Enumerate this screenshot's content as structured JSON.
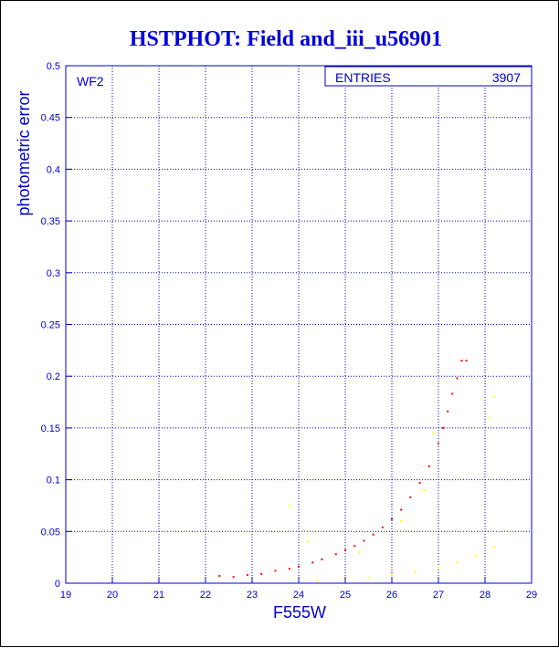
{
  "chart_data": {
    "type": "scatter",
    "title": "HSTPHOT: Field and_iii_u56901",
    "xlabel": "F555W",
    "ylabel": "photometric error",
    "panel_label": "WF2",
    "stats": {
      "label": "ENTRIES",
      "value": "3907"
    },
    "xlim": [
      19,
      29
    ],
    "ylim": [
      0,
      0.5
    ],
    "xticks": [
      "19",
      "20",
      "21",
      "22",
      "23",
      "24",
      "25",
      "26",
      "27",
      "28",
      "29"
    ],
    "yticks": [
      "0",
      "0.05",
      "0.1",
      "0.15",
      "0.2",
      "0.25",
      "0.3",
      "0.35",
      "0.4",
      "0.45",
      "0.5"
    ],
    "grid": true,
    "series": [
      {
        "color": "#ff0000",
        "values": [
          [
            22.3,
            0.007
          ],
          [
            22.6,
            0.006
          ],
          [
            22.9,
            0.008
          ],
          [
            23.2,
            0.009
          ],
          [
            23.5,
            0.012
          ],
          [
            23.8,
            0.014
          ],
          [
            24.0,
            0.016
          ],
          [
            24.3,
            0.02
          ],
          [
            24.5,
            0.023
          ],
          [
            24.8,
            0.028
          ],
          [
            25.0,
            0.032
          ],
          [
            25.2,
            0.036
          ],
          [
            25.4,
            0.041
          ],
          [
            25.6,
            0.047
          ],
          [
            25.8,
            0.054
          ],
          [
            26.0,
            0.062
          ],
          [
            26.2,
            0.071
          ],
          [
            26.4,
            0.083
          ],
          [
            26.6,
            0.097
          ],
          [
            26.8,
            0.113
          ],
          [
            27.0,
            0.135
          ],
          [
            27.1,
            0.15
          ],
          [
            27.2,
            0.166
          ],
          [
            27.3,
            0.183
          ],
          [
            27.4,
            0.198
          ],
          [
            27.5,
            0.215
          ],
          [
            27.6,
            0.215
          ]
        ]
      },
      {
        "color": "#ffff00",
        "values": [
          [
            24.4,
            0.002
          ],
          [
            25.0,
            0.004
          ],
          [
            25.5,
            0.005
          ],
          [
            26.0,
            0.008
          ],
          [
            26.5,
            0.011
          ],
          [
            27.0,
            0.015
          ],
          [
            27.4,
            0.02
          ],
          [
            27.8,
            0.027
          ],
          [
            28.2,
            0.035
          ],
          [
            24.2,
            0.04
          ],
          [
            25.3,
            0.03
          ],
          [
            26.2,
            0.06
          ],
          [
            26.7,
            0.09
          ],
          [
            26.9,
            0.145
          ],
          [
            28.1,
            0.16
          ],
          [
            28.2,
            0.18
          ],
          [
            23.8,
            0.075
          ]
        ]
      }
    ]
  }
}
